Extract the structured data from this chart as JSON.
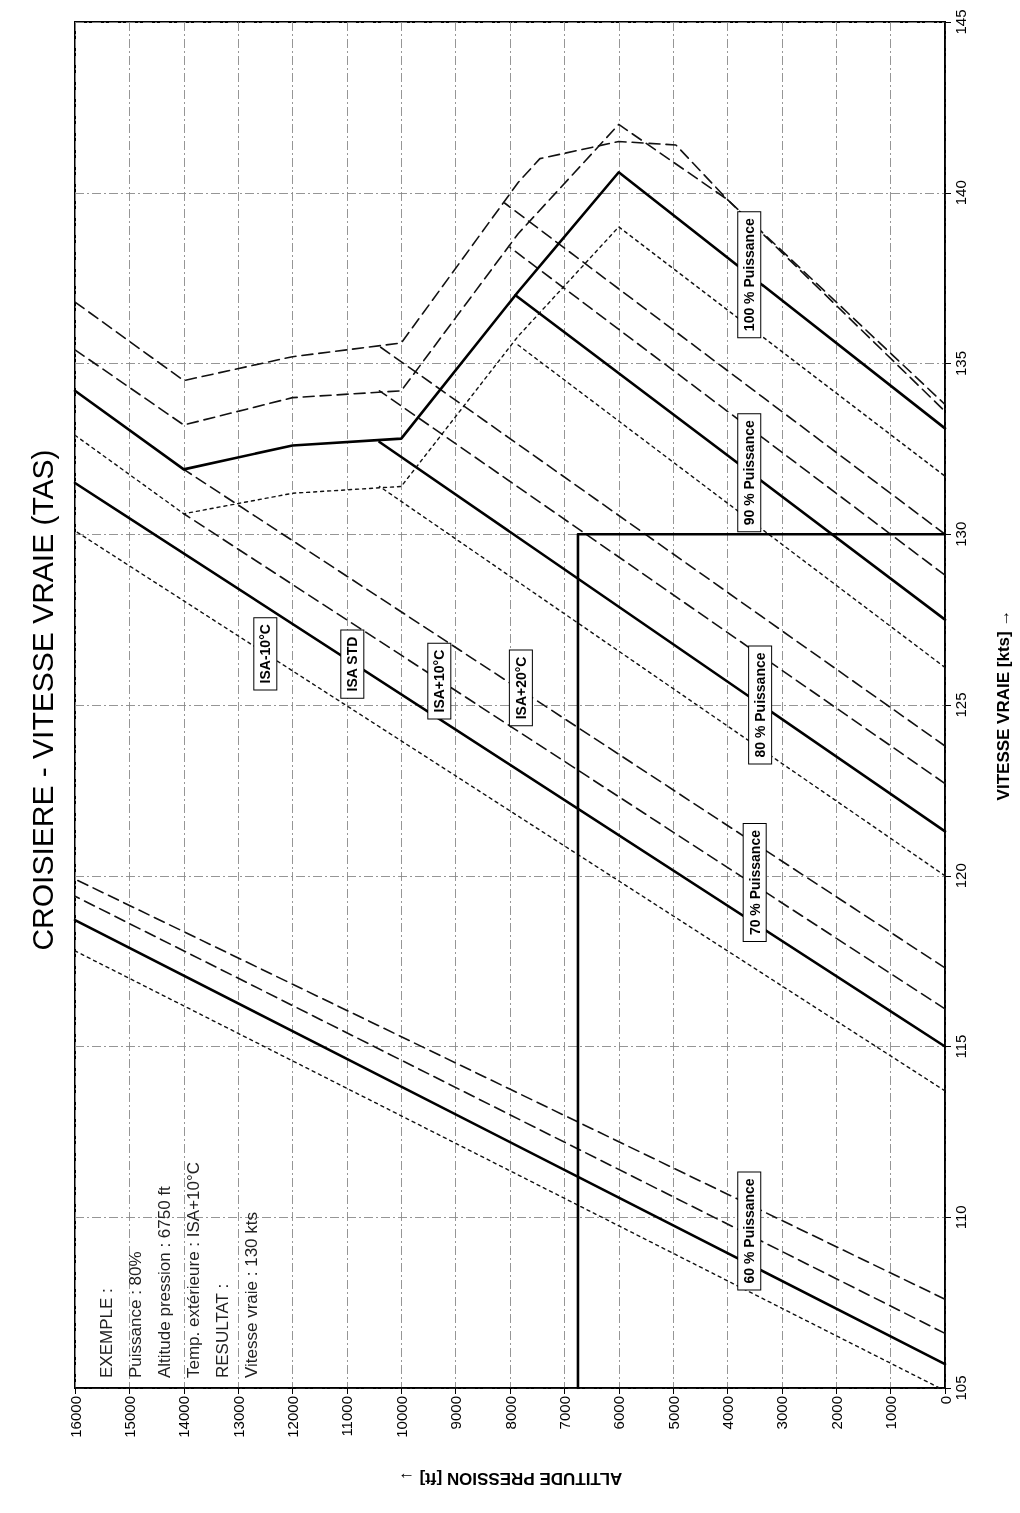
{
  "chart_data": {
    "type": "line",
    "title": "CROISIERE - VITESSE VRAIE (TAS)",
    "xlabel": "ALTITUDE PRESSION [ft] →",
    "ylabel": "VITESSE VRAIE [kts] →",
    "xlim": [
      16000,
      0
    ],
    "xticks": [
      16000,
      15000,
      14000,
      13000,
      12000,
      11000,
      10000,
      9000,
      8000,
      7000,
      6000,
      5000,
      4000,
      3000,
      2000,
      1000,
      0
    ],
    "ylim": [
      105,
      145
    ],
    "yticks": [
      105,
      110,
      115,
      120,
      125,
      130,
      135,
      140,
      145
    ],
    "grid": true,
    "series": [
      {
        "color": "#111111",
        "line_style": "dotted",
        "x": [
          100,
          16000
        ],
        "values": [
          105.0,
          117.8
        ]
      },
      {
        "color": "#000000",
        "line_style": "solid",
        "x": [
          0,
          16000
        ],
        "values": [
          105.7,
          118.7
        ]
      },
      {
        "color": "#111111",
        "line_style": "dashed",
        "x": [
          0,
          16000
        ],
        "values": [
          106.6,
          119.4
        ]
      },
      {
        "color": "#111111",
        "line_style": "dashed",
        "x": [
          0,
          16000
        ],
        "values": [
          107.6,
          119.9
        ]
      },
      {
        "color": "#111111",
        "line_style": "dotted",
        "x": [
          0,
          16000
        ],
        "values": [
          113.7,
          130.1
        ]
      },
      {
        "color": "#000000",
        "line_style": "solid",
        "x": [
          0,
          16000
        ],
        "values": [
          115.0,
          131.5
        ]
      },
      {
        "color": "#111111",
        "line_style": "dashed",
        "x": [
          0,
          14000
        ],
        "values": [
          116.1,
          130.6
        ]
      },
      {
        "color": "#111111",
        "line_style": "dashed",
        "x": [
          0,
          14000
        ],
        "values": [
          117.3,
          131.9
        ]
      },
      {
        "color": "#111111",
        "line_style": "dotted",
        "x": [
          0,
          10400
        ],
        "values": [
          120.0,
          131.4
        ]
      },
      {
        "color": "#000000",
        "line_style": "solid",
        "x": [
          0,
          10400
        ],
        "values": [
          121.3,
          132.7
        ]
      },
      {
        "color": "#111111",
        "line_style": "dashed",
        "x": [
          0,
          10400
        ],
        "values": [
          122.7,
          134.2
        ]
      },
      {
        "color": "#111111",
        "line_style": "dashed",
        "x": [
          0,
          10400
        ],
        "values": [
          123.8,
          135.5
        ]
      },
      {
        "color": "#111111",
        "line_style": "dotted",
        "x": [
          0,
          7900
        ],
        "values": [
          126.1,
          135.6
        ]
      },
      {
        "color": "#000000",
        "line_style": "solid",
        "x": [
          0,
          7900
        ],
        "values": [
          127.5,
          137.0
        ]
      },
      {
        "color": "#111111",
        "line_style": "dashed",
        "x": [
          0,
          8000
        ],
        "values": [
          128.8,
          138.4
        ]
      },
      {
        "color": "#111111",
        "line_style": "dashed",
        "x": [
          0,
          8100
        ],
        "values": [
          130.0,
          139.7
        ]
      },
      {
        "color": "#111111",
        "line_style": "dotted",
        "x": [
          16000,
          14000,
          12000,
          10000,
          7850,
          6000,
          0
        ],
        "values": [
          132.9,
          130.6,
          131.2,
          131.4,
          135.8,
          139.0,
          131.7
        ]
      },
      {
        "color": "#000000",
        "line_style": "solid",
        "x": [
          16000,
          14000,
          12000,
          10000,
          7850,
          6000,
          0
        ],
        "values": [
          134.2,
          131.9,
          132.6,
          132.8,
          137.1,
          140.6,
          133.1
        ]
      },
      {
        "color": "#111111",
        "line_style": "dashed",
        "x": [
          16000,
          14000,
          12000,
          10000,
          7850,
          6000,
          4000,
          0
        ],
        "values": [
          135.4,
          133.2,
          134.0,
          134.2,
          138.8,
          142.0,
          139.8,
          133.8
        ]
      },
      {
        "color": "#111111",
        "line_style": "dashed",
        "x": [
          16000,
          14000,
          12000,
          10000,
          7850,
          7450,
          6000,
          4950,
          4000,
          0
        ],
        "values": [
          136.8,
          134.5,
          135.2,
          135.6,
          140.3,
          141.0,
          141.5,
          141.4,
          139.8,
          133.6
        ]
      },
      {
        "color": "#000000",
        "line_style": "solid",
        "x": [
          6750,
          6750,
          0
        ],
        "values": [
          105,
          130,
          130
        ]
      }
    ],
    "annotations": [
      "EXEMPLE :",
      "Puissance : 80%",
      "Altitude pression : 6750 ft",
      "Temp. extérieure : ISA+10°C",
      "RESULTAT :",
      "Vitesse vraie : 130 kts",
      {
        "text": "ISA-10°C",
        "x": 12500,
        "y": 126.5
      },
      {
        "text": "ISA STD",
        "x": 10900,
        "y": 126.2
      },
      {
        "text": "ISA+10°C",
        "x": 9300,
        "y": 125.7
      },
      {
        "text": "ISA+20°C",
        "x": 7800,
        "y": 125.5
      },
      {
        "text": "60 % Puissance",
        "x": 3600,
        "y": 109.6
      },
      {
        "text": "70 % Puissance",
        "x": 3500,
        "y": 119.8
      },
      {
        "text": "80 % Puissance",
        "x": 3400,
        "y": 125.0
      },
      {
        "text": "90 % Puissance",
        "x": 3600,
        "y": 131.8
      },
      {
        "text": "100 % Puissance",
        "x": 3600,
        "y": 137.6
      }
    ]
  }
}
